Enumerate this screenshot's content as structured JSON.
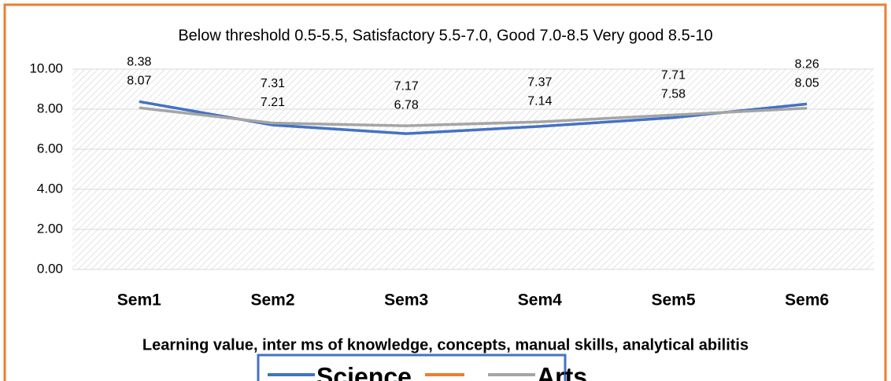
{
  "chart_data": {
    "type": "line",
    "title": "Below threshold 0.5-5.5,  Satisfactory 5.5-7.0, Good 7.0-8.5 Very good 8.5-10",
    "x_label": "Learning value, inter ms of knowledge, concepts, manual skills, analytical abilitis",
    "categories": [
      "Sem1",
      "Sem2",
      "Sem3",
      "Sem4",
      "Sem5",
      "Sem6"
    ],
    "series": [
      {
        "name": "Science",
        "color": "#4472c4",
        "values": [
          8.38,
          7.21,
          6.78,
          7.14,
          7.58,
          8.26
        ]
      },
      {
        "name": "Arts",
        "color": "#a5a5a5",
        "values": [
          8.07,
          7.31,
          7.17,
          7.37,
          7.71,
          8.05
        ]
      }
    ],
    "ylim": [
      0,
      10
    ],
    "yticks": [
      {
        "value": 0,
        "label": "0.00"
      },
      {
        "value": 2,
        "label": "2.00"
      },
      {
        "value": 4,
        "label": "4.00"
      },
      {
        "value": 6,
        "label": "6.00"
      },
      {
        "value": 8,
        "label": "8.00"
      },
      {
        "value": 10,
        "label": "10.00"
      }
    ],
    "grid": true
  }
}
